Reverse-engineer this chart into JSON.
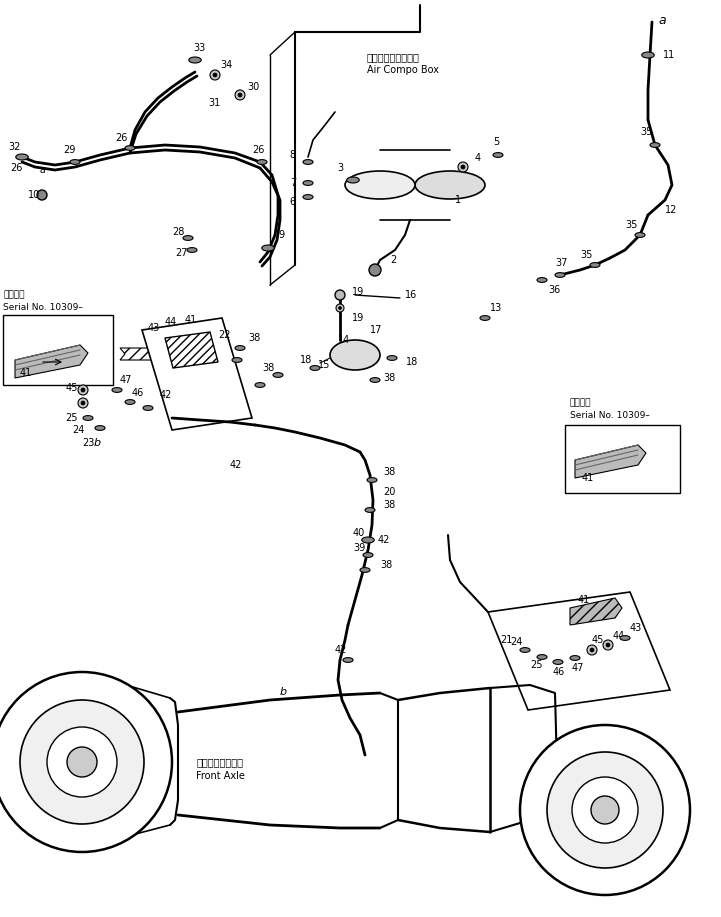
{
  "fig_width": 7.21,
  "fig_height": 9.17,
  "dpi": 100,
  "bg_color": "#ffffff",
  "line_color": "#000000",
  "fs": 7.0,
  "fs_small": 6.0,
  "fs_label": 7.5,
  "labels": {
    "air_compo_box_jp": "エアーコンボックス",
    "air_compo_box_en": "Air Compo Box",
    "front_axle_jp": "フロントアクスル",
    "front_axle_en": "Front Axle",
    "serial_no_jp": "適用号等",
    "serial_no_en": "Serial No. 10309–"
  }
}
